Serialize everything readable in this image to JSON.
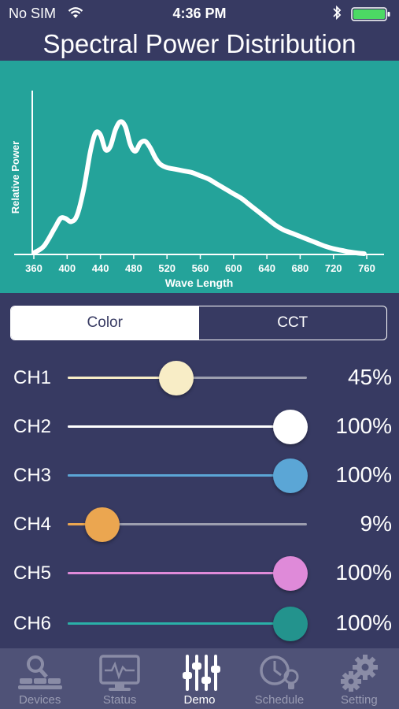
{
  "status_bar": {
    "carrier": "No SIM",
    "time": "4:36 PM",
    "battery_color": "#4cd964"
  },
  "page_title": "Spectral Power Distribution",
  "chart_data": {
    "type": "line",
    "title": "",
    "xlabel": "Wave Length",
    "ylabel": "Relative Power",
    "xlim": [
      350,
      770
    ],
    "ylim": [
      0,
      1
    ],
    "x_ticks": [
      360,
      400,
      440,
      480,
      520,
      560,
      600,
      640,
      680,
      720,
      760
    ],
    "grid": false,
    "series": [
      {
        "color": "#ffffff",
        "x": [
          360,
          372,
          385,
          392,
          398,
          405,
          412,
          420,
          428,
          434,
          440,
          446,
          452,
          458,
          464,
          470,
          476,
          482,
          488,
          494,
          500,
          506,
          512,
          520,
          530,
          540,
          550,
          560,
          570,
          580,
          590,
          600,
          610,
          620,
          630,
          640,
          650,
          660,
          670,
          680,
          690,
          700,
          710,
          720,
          730,
          740,
          750,
          757
        ],
        "y": [
          0.01,
          0.05,
          0.16,
          0.22,
          0.22,
          0.2,
          0.24,
          0.4,
          0.63,
          0.74,
          0.73,
          0.64,
          0.66,
          0.76,
          0.81,
          0.78,
          0.67,
          0.63,
          0.68,
          0.69,
          0.65,
          0.59,
          0.55,
          0.53,
          0.52,
          0.51,
          0.5,
          0.48,
          0.46,
          0.43,
          0.4,
          0.37,
          0.34,
          0.3,
          0.26,
          0.22,
          0.18,
          0.15,
          0.13,
          0.11,
          0.09,
          0.07,
          0.05,
          0.035,
          0.025,
          0.015,
          0.008,
          0.005
        ]
      }
    ]
  },
  "segmented": {
    "color_label": "Color",
    "cct_label": "CCT",
    "selected": "Color"
  },
  "channels": [
    {
      "label": "CH1",
      "value": 45,
      "value_text": "45%",
      "color": "#f8edc6",
      "fill": "#f8edc6"
    },
    {
      "label": "CH2",
      "value": 100,
      "value_text": "100%",
      "color": "#ffffff",
      "fill": "#ffffff"
    },
    {
      "label": "CH3",
      "value": 100,
      "value_text": "100%",
      "color": "#5ba6d6",
      "fill": "#5ba6d6"
    },
    {
      "label": "CH4",
      "value": 9,
      "value_text": "9%",
      "color": "#eba650",
      "fill": "#eba650"
    },
    {
      "label": "CH5",
      "value": 100,
      "value_text": "100%",
      "color": "#df8ad9",
      "fill": "#df8ad9"
    },
    {
      "label": "CH6",
      "value": 100,
      "value_text": "100%",
      "color": "#23938d",
      "fill": "#2ab0a8"
    }
  ],
  "tabs": [
    {
      "label": "Devices",
      "icon": "devices-icon",
      "active": false
    },
    {
      "label": "Status",
      "icon": "status-monitor-icon",
      "active": false
    },
    {
      "label": "Demo",
      "icon": "sliders-icon",
      "active": true
    },
    {
      "label": "Schedule",
      "icon": "schedule-clock-icon",
      "active": false
    },
    {
      "label": "Setting",
      "icon": "gears-icon",
      "active": false
    }
  ]
}
